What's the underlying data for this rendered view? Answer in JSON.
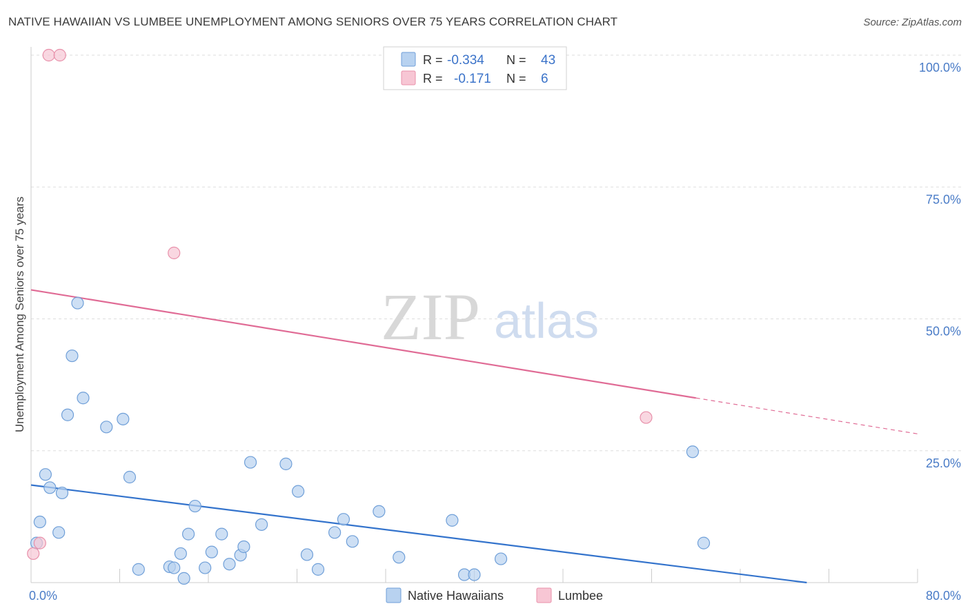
{
  "title": "NATIVE HAWAIIAN VS LUMBEE UNEMPLOYMENT AMONG SENIORS OVER 75 YEARS CORRELATION CHART",
  "source": "Source: ZipAtlas.com",
  "watermark": {
    "zip": "ZIP",
    "atlas": "atlas"
  },
  "colors": {
    "blue_fill": "#b8d2f0",
    "blue_stroke": "#6f9fd8",
    "blue_line": "#3373cc",
    "pink_fill": "#f7c6d4",
    "pink_stroke": "#e890aa",
    "pink_line": "#e06b95",
    "grid": "#dddddd",
    "tick_text": "#4a7cc7"
  },
  "legend": {
    "rows": [
      {
        "r_label": "R =",
        "r_value": "-0.334",
        "n_label": "N =",
        "n_value": "43"
      },
      {
        "r_label": "R =",
        "r_value": "-0.171",
        "n_label": "N =",
        "n_value": "6"
      }
    ]
  },
  "chart_data": {
    "type": "scatter",
    "title": "NATIVE HAWAIIAN VS LUMBEE UNEMPLOYMENT AMONG SENIORS OVER 75 YEARS CORRELATION CHART",
    "xlabel": "",
    "ylabel": "Unemployment Among Seniors over 75 years",
    "xlim": [
      0,
      80
    ],
    "ylim": [
      0,
      100
    ],
    "x_tick_labels": [
      "0.0%",
      "80.0%"
    ],
    "y_ticks": [
      25,
      50,
      75,
      100
    ],
    "y_tick_labels": [
      "25.0%",
      "50.0%",
      "75.0%",
      "100.0%"
    ],
    "grid": true,
    "legend_position": "bottom",
    "series": [
      {
        "name": "Native Hawaiians",
        "color": "#6f9fd8",
        "points": [
          [
            0.5,
            7.5
          ],
          [
            0.8,
            11.5
          ],
          [
            1.3,
            20.5
          ],
          [
            1.7,
            18.0
          ],
          [
            2.5,
            9.5
          ],
          [
            2.8,
            17.0
          ],
          [
            3.3,
            31.8
          ],
          [
            3.7,
            43.0
          ],
          [
            4.2,
            53.0
          ],
          [
            4.7,
            35.0
          ],
          [
            6.8,
            29.5
          ],
          [
            8.3,
            31.0
          ],
          [
            8.9,
            20.0
          ],
          [
            9.7,
            2.5
          ],
          [
            12.5,
            3.0
          ],
          [
            12.9,
            2.8
          ],
          [
            13.5,
            5.5
          ],
          [
            13.8,
            0.8
          ],
          [
            14.2,
            9.2
          ],
          [
            14.8,
            14.5
          ],
          [
            15.7,
            2.8
          ],
          [
            16.3,
            5.8
          ],
          [
            17.2,
            9.2
          ],
          [
            17.9,
            3.5
          ],
          [
            18.9,
            5.2
          ],
          [
            19.2,
            6.8
          ],
          [
            19.8,
            22.8
          ],
          [
            20.8,
            11.0
          ],
          [
            23.0,
            22.5
          ],
          [
            24.1,
            17.3
          ],
          [
            24.9,
            5.3
          ],
          [
            25.9,
            2.5
          ],
          [
            27.4,
            9.5
          ],
          [
            28.2,
            12.0
          ],
          [
            29.0,
            7.8
          ],
          [
            31.4,
            13.5
          ],
          [
            33.2,
            4.8
          ],
          [
            38.0,
            11.8
          ],
          [
            39.1,
            1.5
          ],
          [
            40.0,
            1.5
          ],
          [
            42.4,
            4.5
          ],
          [
            59.7,
            24.8
          ],
          [
            60.7,
            7.5
          ]
        ],
        "trend": {
          "x": [
            0,
            70
          ],
          "y": [
            18.5,
            0
          ]
        }
      },
      {
        "name": "Lumbee",
        "color": "#e890aa",
        "points": [
          [
            0.2,
            5.5
          ],
          [
            0.8,
            7.5
          ],
          [
            1.6,
            100.0
          ],
          [
            2.6,
            100.0
          ],
          [
            12.9,
            62.5
          ],
          [
            55.5,
            31.3
          ]
        ],
        "trend": {
          "x": [
            0,
            60
          ],
          "y": [
            55.5,
            35.0
          ]
        },
        "trend_dashed": {
          "x": [
            60,
            80
          ],
          "y": [
            35.0,
            28.2
          ]
        }
      }
    ]
  }
}
